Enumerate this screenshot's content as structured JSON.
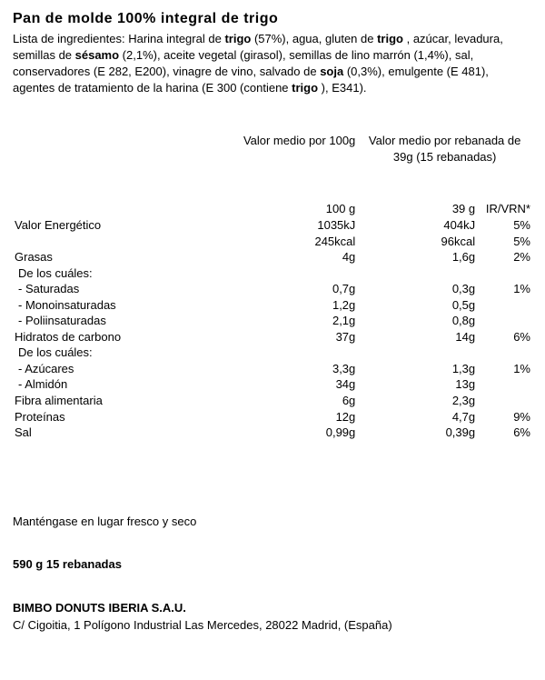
{
  "title": "Pan de molde 100% integral de trigo",
  "ingredients": {
    "prefix": "Lista de ingredientes: Harina integral de ",
    "b1": "trigo",
    "p2": " (57%), agua, gluten de ",
    "b2": "trigo",
    "p3": " , azúcar, levadura, semillas de ",
    "b3": "sésamo",
    "p4": " (2,1%), aceite vegetal (girasol), semillas de lino marrón (1,4%), sal, conservadores (E 282, E200), vinagre de vino, salvado de ",
    "b4": "soja",
    "p5": " (0,3%), emulgente (E 481), agentes de tratamiento de la harina (E 300 (contiene ",
    "b5": "trigo",
    "p6": " ), E341)."
  },
  "headers": {
    "per100": "Valor medio por 100g",
    "perSlice": "Valor medio por rebanada de 39g (15 rebanadas)"
  },
  "baseRow": {
    "label": "",
    "per100": "100 g",
    "perSlice": "39 g",
    "ir": "IR/VRN*"
  },
  "rows": [
    {
      "label": "Valor  Energético",
      "per100": "1035kJ",
      "perSlice": "404kJ",
      "ir": "5%",
      "indent": 0
    },
    {
      "label": "",
      "per100": "245kcal",
      "perSlice": "96kcal",
      "ir": "5%",
      "indent": 0
    },
    {
      "label": "Grasas",
      "per100": "4g",
      "perSlice": "1,6g",
      "ir": "2%",
      "indent": 0
    },
    {
      "label": "De los cuáles:",
      "per100": "",
      "perSlice": "",
      "ir": "",
      "indent": 1
    },
    {
      "label": "-  Saturadas",
      "per100": "0,7g",
      "perSlice": "0,3g",
      "ir": "1%",
      "indent": 1
    },
    {
      "label": "-  Monoinsaturadas",
      "per100": "1,2g",
      "perSlice": "0,5g",
      "ir": "",
      "indent": 1
    },
    {
      "label": "-  Poliinsaturadas",
      "per100": "2,1g",
      "perSlice": "0,8g",
      "ir": "",
      "indent": 1
    },
    {
      "label": "Hidratos  de  carbono",
      "per100": "37g",
      "perSlice": "14g",
      "ir": "6%",
      "indent": 0
    },
    {
      "label": "De los cuáles:",
      "per100": "",
      "perSlice": "",
      "ir": "",
      "indent": 1
    },
    {
      "label": "-  Azúcares",
      "per100": "3,3g",
      "perSlice": "1,3g",
      "ir": "1%",
      "indent": 1
    },
    {
      "label": "-  Almidón",
      "per100": "34g",
      "perSlice": "13g",
      "ir": "",
      "indent": 1
    },
    {
      "label": "Fibra  alimentaria",
      "per100": "6g",
      "perSlice": "2,3g",
      "ir": "",
      "indent": 0
    },
    {
      "label": "Proteínas",
      "per100": "12g",
      "perSlice": "4,7g",
      "ir": "9%",
      "indent": 0
    },
    {
      "label": "Sal",
      "per100": "0,99g",
      "perSlice": "0,39g",
      "ir": "6%",
      "indent": 0
    }
  ],
  "storage": "Manténgase en lugar fresco y seco",
  "weight": "590 g  15 rebanadas",
  "company": "BIMBO DONUTS IBERIA S.A.U.",
  "address": "C/ Cigoitia, 1 Polígono Industrial Las Mercedes, 28022 Madrid, (España)"
}
